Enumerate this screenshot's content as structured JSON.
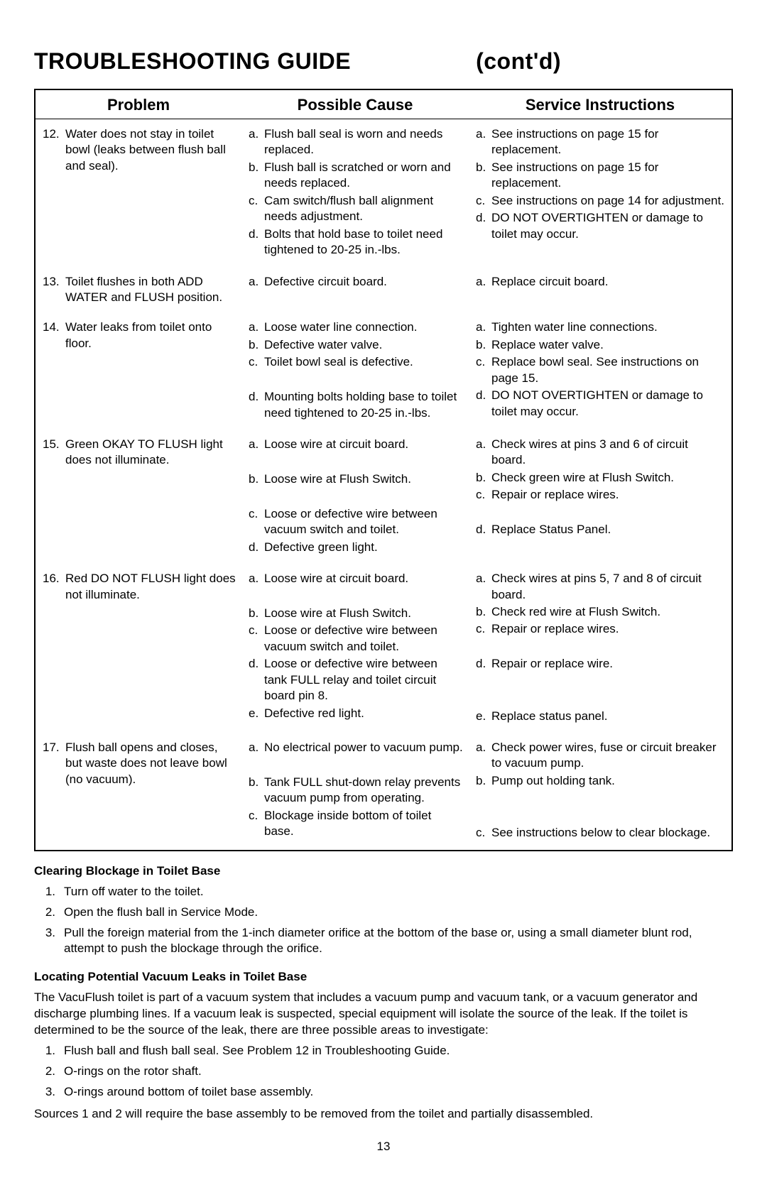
{
  "page_number": "13",
  "title_main": "TROUBLESHOOTING GUIDE",
  "title_contd": "(cont'd)",
  "table": {
    "headers": {
      "problem": "Problem",
      "cause": "Possible Cause",
      "service": "Service Instructions"
    },
    "rows": [
      {
        "problem_num": "12.",
        "problem_text": "Water does not stay in toilet bowl (leaks between flush ball and seal).",
        "causes": [
          {
            "l": "a.",
            "t": "Flush ball seal is worn and needs replaced."
          },
          {
            "l": "b.",
            "t": "Flush ball is scratched or worn and needs replaced."
          },
          {
            "l": "c.",
            "t": "Cam switch/flush ball alignment needs adjustment."
          },
          {
            "l": "d.",
            "t": "Bolts that hold base to toilet need tightened to 20-25 in.-lbs."
          }
        ],
        "services": [
          {
            "l": "a.",
            "t": "See instructions on page 15 for replacement."
          },
          {
            "l": "b.",
            "t": "See instructions on page 15 for replacement."
          },
          {
            "l": "c.",
            "t": "See instructions on page 14 for adjustment."
          },
          {
            "l": "d.",
            "t": "DO NOT OVERTIGHTEN or damage to toilet may occur."
          }
        ]
      },
      {
        "problem_num": "13.",
        "problem_text": "Toilet flushes in both ADD WATER and FLUSH position.",
        "causes": [
          {
            "l": "a.",
            "t": "Defective circuit board."
          }
        ],
        "services": [
          {
            "l": "a.",
            "t": "Replace circuit board."
          }
        ]
      },
      {
        "problem_num": "14.",
        "problem_text": "Water leaks from toilet onto floor.",
        "causes": [
          {
            "l": "a.",
            "t": "Loose water line connection."
          },
          {
            "l": "b.",
            "t": "Defective water valve."
          },
          {
            "l": "c.",
            "t": "Toilet bowl seal is defective."
          },
          {
            "l": "",
            "t": ""
          },
          {
            "l": "d.",
            "t": "Mounting bolts holding base to toilet need tightened to 20-25 in.-lbs."
          }
        ],
        "services": [
          {
            "l": "a.",
            "t": "Tighten water line connections."
          },
          {
            "l": "b.",
            "t": "Replace water valve."
          },
          {
            "l": "c.",
            "t": "Replace bowl seal. See instructions on page 15."
          },
          {
            "l": "d.",
            "t": "DO NOT OVERTIGHTEN or damage to toilet may occur."
          }
        ]
      },
      {
        "problem_num": "15.",
        "problem_text": "Green OKAY TO FLUSH light does not illuminate.",
        "causes": [
          {
            "l": "a.",
            "t": "Loose wire at circuit board."
          },
          {
            "l": "",
            "t": ""
          },
          {
            "l": "b.",
            "t": "Loose wire at Flush Switch."
          },
          {
            "l": "",
            "t": ""
          },
          {
            "l": "c.",
            "t": "Loose or defective wire between vacuum switch and toilet."
          },
          {
            "l": "d.",
            "t": "Defective green light."
          }
        ],
        "services": [
          {
            "l": "a.",
            "t": "Check wires at pins 3 and 6 of circuit board."
          },
          {
            "l": "b.",
            "t": "Check green wire at Flush Switch."
          },
          {
            "l": "c.",
            "t": "Repair or replace wires."
          },
          {
            "l": "",
            "t": ""
          },
          {
            "l": "d.",
            "t": "Replace Status Panel."
          }
        ]
      },
      {
        "problem_num": "16.",
        "problem_text": "Red DO NOT FLUSH light does not illuminate.",
        "causes": [
          {
            "l": "a.",
            "t": "Loose wire at circuit board."
          },
          {
            "l": "",
            "t": ""
          },
          {
            "l": "b.",
            "t": "Loose wire at Flush Switch."
          },
          {
            "l": "c.",
            "t": "Loose or defective wire between vacuum switch and toilet."
          },
          {
            "l": "d.",
            "t": "Loose or defective wire between tank FULL relay and toilet circuit board pin 8."
          },
          {
            "l": "e.",
            "t": "Defective red light."
          }
        ],
        "services": [
          {
            "l": "a.",
            "t": "Check wires at pins 5, 7 and 8 of circuit board."
          },
          {
            "l": "b.",
            "t": "Check red wire at Flush Switch."
          },
          {
            "l": "c.",
            "t": "Repair or replace wires."
          },
          {
            "l": "",
            "t": ""
          },
          {
            "l": "d.",
            "t": "Repair or replace wire."
          },
          {
            "l": "",
            "t": ""
          },
          {
            "l": "",
            "t": ""
          },
          {
            "l": "e.",
            "t": "Replace status panel."
          }
        ]
      },
      {
        "problem_num": "17.",
        "problem_text": "Flush ball opens and closes, but waste does not leave bowl (no vacuum).",
        "causes": [
          {
            "l": "a.",
            "t": "No electrical power to vacuum pump."
          },
          {
            "l": "",
            "t": ""
          },
          {
            "l": "b.",
            "t": "Tank FULL shut-down relay prevents vacuum pump from operating."
          },
          {
            "l": "c.",
            "t": "Blockage inside bottom of toilet base."
          }
        ],
        "services": [
          {
            "l": "a.",
            "t": "Check power wires, fuse or circuit breaker to vacuum pump."
          },
          {
            "l": "b.",
            "t": "Pump out holding tank."
          },
          {
            "l": "",
            "t": ""
          },
          {
            "l": "",
            "t": ""
          },
          {
            "l": "c.",
            "t": "See instructions below to clear blockage."
          }
        ]
      }
    ]
  },
  "section_a": {
    "heading": "Clearing Blockage in Toilet Base",
    "items": [
      {
        "n": "1.",
        "t": "Turn off water to the toilet."
      },
      {
        "n": "2.",
        "t": "Open the flush ball in Service Mode."
      },
      {
        "n": "3.",
        "t": "Pull the foreign material from the 1-inch diameter orifice at the bottom of the base or, using a small diameter blunt rod, attempt to push the blockage through the orifice."
      }
    ]
  },
  "section_b": {
    "heading": "Locating Potential Vacuum Leaks in Toilet Base",
    "intro": "The VacuFlush toilet is part of a vacuum system that includes a vacuum pump and vacuum tank, or a vacuum generator and discharge plumbing lines. If a vacuum leak is suspected, special equipment will isolate the source of the leak. If the toilet is determined to be the source of the leak, there are three possible areas to investigate:",
    "items": [
      {
        "n": "1.",
        "t": "Flush ball and flush ball seal. See Problem 12 in Troubleshooting Guide."
      },
      {
        "n": "2.",
        "t": "O-rings on the rotor shaft."
      },
      {
        "n": "3.",
        "t": "O-rings around bottom of toilet base assembly."
      }
    ],
    "outro": "Sources 1 and 2 will require the base assembly to be removed from the toilet and partially disassembled."
  }
}
